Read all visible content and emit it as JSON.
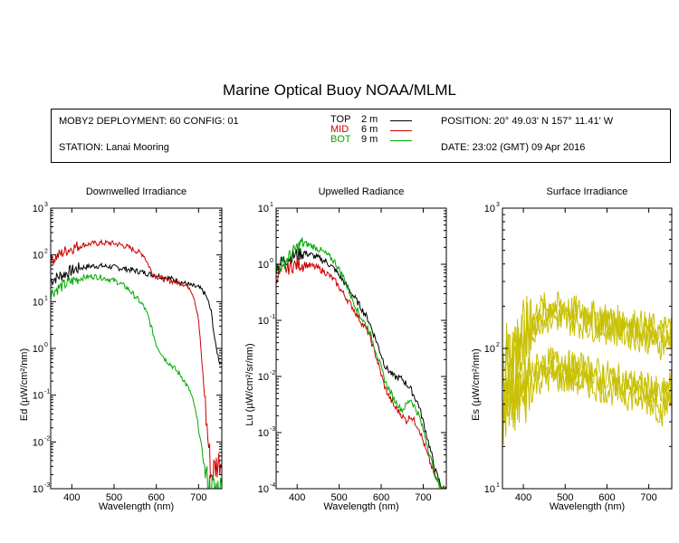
{
  "title": "Marine Optical Buoy NOAA/MLML",
  "info": {
    "deployment": "MOBY2 DEPLOYMENT: 60 CONFIG: 01",
    "station": "STATION: Lanai Mooring",
    "position": "POSITION: 20° 49.03' N   157° 11.41' W",
    "date": "DATE: 23:02 (GMT) 09 Apr 2016",
    "legend": [
      {
        "name": "TOP",
        "depth": "2  m",
        "color": "#000000"
      },
      {
        "name": "MID",
        "depth": "6  m",
        "color": "#cc0000"
      },
      {
        "name": "BOT",
        "depth": "9  m",
        "color": "#00aa00"
      }
    ]
  },
  "chart_data": [
    {
      "type": "line",
      "title": "Downwelled Irradiance",
      "xlabel": "Wavelength (nm)",
      "ylabel": "Ed  (µW/cm²/nm)",
      "xlim": [
        350,
        755
      ],
      "ylim": [
        0.001,
        1000
      ],
      "yscale": "log",
      "xticks": [
        400,
        500,
        600,
        700
      ],
      "ytick_exponents": [
        -3,
        -2,
        -1,
        0,
        1,
        2,
        3
      ],
      "series": [
        {
          "name": "TOP",
          "color": "#000000",
          "x": [
            350,
            370,
            390,
            410,
            430,
            450,
            470,
            490,
            510,
            530,
            550,
            570,
            590,
            610,
            630,
            650,
            670,
            690,
            700,
            710,
            720,
            730,
            740,
            750
          ],
          "y": [
            28,
            35,
            42,
            50,
            55,
            58,
            58,
            56,
            53,
            50,
            46,
            42,
            38,
            35,
            32,
            28,
            24,
            21,
            20,
            17,
            12,
            6,
            1.2,
            0.5
          ]
        },
        {
          "name": "MID",
          "color": "#cc0000",
          "x": [
            350,
            370,
            390,
            410,
            430,
            450,
            470,
            490,
            510,
            530,
            550,
            570,
            580,
            590,
            600,
            620,
            640,
            660,
            680,
            690,
            700,
            710,
            720,
            730,
            740,
            750
          ],
          "y": [
            75,
            100,
            130,
            150,
            165,
            175,
            180,
            180,
            170,
            150,
            125,
            100,
            65,
            42,
            35,
            30,
            27,
            25,
            20,
            12,
            4,
            0.3,
            0.02,
            0.002,
            0.003,
            0.004
          ]
        },
        {
          "name": "BOT",
          "color": "#00aa00",
          "x": [
            350,
            370,
            390,
            410,
            430,
            450,
            470,
            490,
            510,
            530,
            550,
            570,
            580,
            590,
            600,
            620,
            640,
            660,
            680,
            690,
            700,
            710,
            720,
            730
          ],
          "y": [
            15,
            20,
            25,
            30,
            33,
            35,
            33,
            30,
            26,
            20,
            13,
            8,
            5,
            2.5,
            1.2,
            0.6,
            0.4,
            0.25,
            0.12,
            0.06,
            0.02,
            0.005,
            0.0015,
            0.001
          ]
        }
      ]
    },
    {
      "type": "line",
      "title": "Upwelled Radiance",
      "xlabel": "Wavelength (nm)",
      "ylabel": "Lu  (µW/cm²/sr/nm)",
      "xlim": [
        350,
        755
      ],
      "ylim": [
        0.0001,
        10
      ],
      "yscale": "log",
      "xticks": [
        400,
        500,
        600,
        700
      ],
      "ytick_exponents": [
        -4,
        -3,
        -2,
        -1,
        0,
        1
      ],
      "series": [
        {
          "name": "TOP",
          "color": "#000000",
          "x": [
            350,
            370,
            390,
            410,
            430,
            450,
            470,
            490,
            510,
            530,
            550,
            570,
            590,
            610,
            630,
            650,
            670,
            690,
            710,
            730,
            745
          ],
          "y": [
            0.9,
            1.2,
            1.4,
            1.6,
            1.5,
            1.3,
            1.1,
            0.8,
            0.5,
            0.3,
            0.18,
            0.1,
            0.04,
            0.015,
            0.01,
            0.009,
            0.006,
            0.003,
            0.0008,
            0.0002,
            0.0001
          ]
        },
        {
          "name": "MID",
          "color": "#cc0000",
          "x": [
            350,
            370,
            390,
            410,
            430,
            450,
            470,
            490,
            510,
            530,
            550,
            570,
            590,
            610,
            630,
            650,
            660,
            670,
            690,
            710,
            730,
            745
          ],
          "y": [
            0.6,
            0.8,
            0.95,
            1.0,
            0.95,
            0.85,
            0.7,
            0.5,
            0.3,
            0.18,
            0.1,
            0.06,
            0.02,
            0.006,
            0.003,
            0.002,
            0.0016,
            0.002,
            0.0012,
            0.0004,
            0.00015,
            0.0001
          ]
        },
        {
          "name": "BOT",
          "color": "#00aa00",
          "x": [
            350,
            370,
            390,
            410,
            430,
            450,
            470,
            490,
            510,
            530,
            550,
            570,
            590,
            610,
            630,
            650,
            670,
            690,
            710,
            730,
            745
          ],
          "y": [
            0.8,
            1.1,
            1.6,
            2.4,
            2.2,
            1.9,
            1.5,
            1.1,
            0.6,
            0.25,
            0.12,
            0.07,
            0.025,
            0.008,
            0.004,
            0.0025,
            0.004,
            0.002,
            0.0006,
            0.00015,
            0.0001
          ]
        }
      ]
    },
    {
      "type": "line",
      "title": "Surface Irradiance",
      "xlabel": "Wavelength (nm)",
      "ylabel": "Es  (µW/cm²/nm)",
      "xlim": [
        350,
        755
      ],
      "ylim": [
        10,
        1000
      ],
      "yscale": "log",
      "xticks": [
        400,
        500,
        600,
        700
      ],
      "ytick_exponents": [
        1,
        2,
        3
      ],
      "series": [
        {
          "color": "#c8c000",
          "x": [
            350,
            380,
            410,
            440,
            470,
            500,
            530,
            560,
            590,
            620,
            650,
            680,
            710,
            730,
            750
          ],
          "y": [
            90,
            110,
            140,
            195,
            200,
            195,
            185,
            175,
            168,
            160,
            155,
            148,
            140,
            130,
            145
          ]
        },
        {
          "color": "#c8c000",
          "x": [
            350,
            380,
            410,
            440,
            470,
            500,
            530,
            560,
            590,
            620,
            650,
            680,
            710,
            730,
            750
          ],
          "y": [
            80,
            100,
            125,
            180,
            182,
            178,
            168,
            160,
            152,
            146,
            140,
            134,
            126,
            118,
            132
          ]
        },
        {
          "color": "#c8c000",
          "x": [
            350,
            380,
            410,
            440,
            470,
            500,
            530,
            560,
            590,
            620,
            650,
            680,
            710,
            730,
            750
          ],
          "y": [
            70,
            90,
            112,
            160,
            165,
            160,
            152,
            145,
            138,
            132,
            126,
            120,
            114,
            105,
            120
          ]
        },
        {
          "color": "#c8c000",
          "x": [
            350,
            380,
            410,
            440,
            470,
            500,
            530,
            560,
            590,
            620,
            650,
            680,
            710,
            730,
            750
          ],
          "y": [
            40,
            55,
            62,
            78,
            80,
            77,
            74,
            70,
            66,
            62,
            58,
            55,
            52,
            46,
            55
          ]
        },
        {
          "color": "#c8c000",
          "x": [
            350,
            380,
            410,
            440,
            470,
            500,
            530,
            560,
            590,
            620,
            650,
            680,
            710,
            730,
            750
          ],
          "y": [
            35,
            48,
            55,
            70,
            72,
            70,
            67,
            63,
            60,
            56,
            52,
            50,
            47,
            40,
            48
          ]
        },
        {
          "color": "#c8c000",
          "x": [
            350,
            380,
            410,
            440,
            470,
            500,
            530,
            560,
            590,
            620,
            650,
            680,
            710,
            730,
            750
          ],
          "y": [
            30,
            40,
            48,
            60,
            62,
            60,
            58,
            55,
            52,
            49,
            46,
            43,
            41,
            35,
            42
          ]
        }
      ]
    }
  ]
}
